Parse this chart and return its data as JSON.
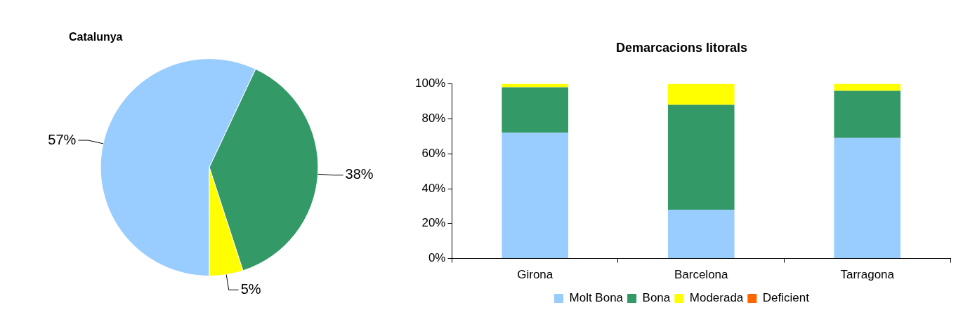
{
  "chart_data": [
    {
      "type": "pie",
      "title": "Catalunya",
      "categories": [
        null,
        null,
        null
      ],
      "values": [
        57,
        38,
        5
      ],
      "colors": [
        "#99ccff",
        "#339966",
        "#ffff00"
      ],
      "value_labels": [
        "57%",
        "38%",
        "5%"
      ],
      "legend": false
    },
    {
      "type": "bar",
      "title": "Demarcacions litorals",
      "categories": [
        "Girona",
        "Barcelona",
        "Tarragona"
      ],
      "stacked": true,
      "legend": "bottom",
      "grid": false,
      "ylim": [
        0,
        100
      ],
      "yticks": [
        {
          "value": 0,
          "label": "0%"
        },
        {
          "value": 20,
          "label": "20%"
        },
        {
          "value": 40,
          "label": "40%"
        },
        {
          "value": 60,
          "label": "60%"
        },
        {
          "value": 80,
          "label": "80%"
        },
        {
          "value": 100,
          "label": "100%"
        }
      ],
      "series": [
        {
          "name": "Molt Bona",
          "color": "#99ccff",
          "values": [
            72,
            28,
            69
          ]
        },
        {
          "name": "Bona",
          "color": "#339966",
          "values": [
            26,
            60,
            27
          ]
        },
        {
          "name": "Moderada",
          "color": "#ffff00",
          "values": [
            2,
            12,
            4
          ]
        },
        {
          "name": "Deficient",
          "color": "#ff6600",
          "values": [
            0,
            0,
            0
          ]
        }
      ]
    }
  ]
}
